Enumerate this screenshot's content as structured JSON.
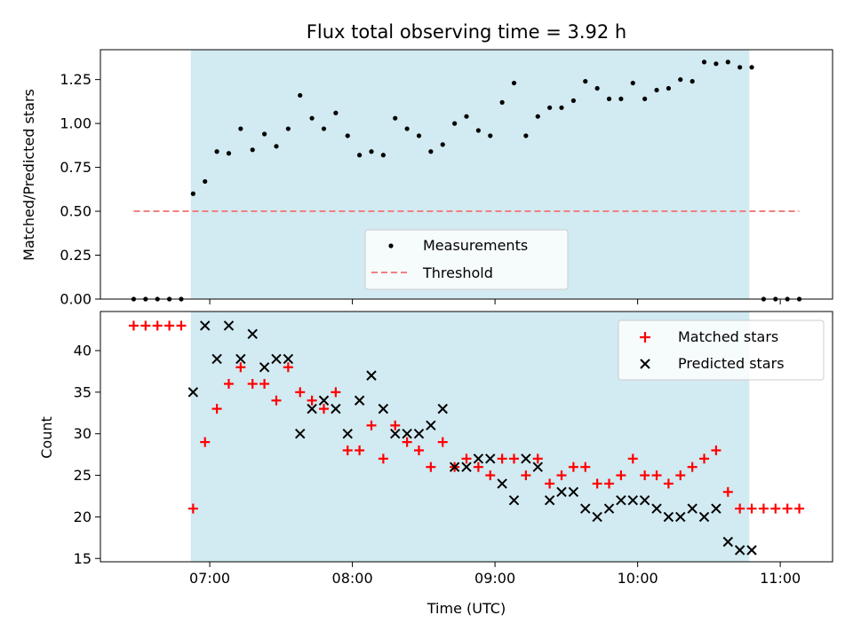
{
  "chart_data": [
    {
      "type": "scatter",
      "title": "Flux total observing time = 3.92 h",
      "xlabel": "",
      "ylabel": "Matched/Predicted stars",
      "xlim": [
        "06:14",
        "11:22"
      ],
      "ylim": [
        0,
        1.42
      ],
      "yticks": [
        0.0,
        0.25,
        0.5,
        0.75,
        1.0,
        1.25
      ],
      "ytick_labels": [
        "0.00",
        "0.25",
        "0.50",
        "0.75",
        "1.00",
        "1.25"
      ],
      "shaded_region": {
        "from": "06:52",
        "to": "10:47",
        "color": "#add8e6"
      },
      "legend_position": "lower center",
      "series": [
        {
          "name": "Measurements",
          "marker": "dot",
          "color": "#000000",
          "points": [
            [
              "06:28",
              0.0
            ],
            [
              "06:33",
              0.0
            ],
            [
              "06:38",
              0.0
            ],
            [
              "06:43",
              0.0
            ],
            [
              "06:48",
              0.0
            ],
            [
              "06:53",
              0.6
            ],
            [
              "06:58",
              0.67
            ],
            [
              "07:03",
              0.84
            ],
            [
              "07:08",
              0.83
            ],
            [
              "07:13",
              0.97
            ],
            [
              "07:18",
              0.85
            ],
            [
              "07:23",
              0.94
            ],
            [
              "07:28",
              0.87
            ],
            [
              "07:33",
              0.97
            ],
            [
              "07:38",
              1.16
            ],
            [
              "07:43",
              1.03
            ],
            [
              "07:48",
              0.97
            ],
            [
              "07:53",
              1.06
            ],
            [
              "07:58",
              0.93
            ],
            [
              "08:03",
              0.82
            ],
            [
              "08:08",
              0.84
            ],
            [
              "08:13",
              0.82
            ],
            [
              "08:18",
              1.03
            ],
            [
              "08:23",
              0.97
            ],
            [
              "08:28",
              0.93
            ],
            [
              "08:33",
              0.84
            ],
            [
              "08:38",
              0.88
            ],
            [
              "08:43",
              1.0
            ],
            [
              "08:48",
              1.04
            ],
            [
              "08:53",
              0.96
            ],
            [
              "08:58",
              0.93
            ],
            [
              "09:03",
              1.12
            ],
            [
              "09:08",
              1.23
            ],
            [
              "09:13",
              0.93
            ],
            [
              "09:18",
              1.04
            ],
            [
              "09:23",
              1.09
            ],
            [
              "09:28",
              1.09
            ],
            [
              "09:33",
              1.13
            ],
            [
              "09:38",
              1.24
            ],
            [
              "09:43",
              1.2
            ],
            [
              "09:48",
              1.14
            ],
            [
              "09:53",
              1.14
            ],
            [
              "09:58",
              1.23
            ],
            [
              "10:03",
              1.14
            ],
            [
              "10:08",
              1.19
            ],
            [
              "10:13",
              1.2
            ],
            [
              "10:18",
              1.25
            ],
            [
              "10:23",
              1.24
            ],
            [
              "10:28",
              1.35
            ],
            [
              "10:33",
              1.34
            ],
            [
              "10:38",
              1.35
            ],
            [
              "10:43",
              1.32
            ],
            [
              "10:48",
              1.32
            ],
            [
              "10:53",
              0.0
            ],
            [
              "10:58",
              0.0
            ],
            [
              "11:03",
              0.0
            ],
            [
              "11:08",
              0.0
            ]
          ]
        },
        {
          "name": "Threshold",
          "marker": "dashed-line",
          "color": "#f08080",
          "points": [
            [
              "06:28",
              0.5
            ],
            [
              "11:08",
              0.5
            ]
          ]
        }
      ]
    },
    {
      "type": "scatter",
      "title": "",
      "xlabel": "Time (UTC)",
      "ylabel": "Count",
      "xlim": [
        "06:14",
        "11:22"
      ],
      "ylim": [
        14.6,
        44.7
      ],
      "yticks": [
        15,
        20,
        25,
        30,
        35,
        40
      ],
      "ytick_labels": [
        "15",
        "20",
        "25",
        "30",
        "35",
        "40"
      ],
      "xticks": [
        "07:00",
        "08:00",
        "09:00",
        "10:00",
        "11:00"
      ],
      "xtick_labels": [
        "07:00",
        "08:00",
        "09:00",
        "10:00",
        "11:00"
      ],
      "shaded_region": {
        "from": "06:52",
        "to": "10:47",
        "color": "#add8e6"
      },
      "legend_position": "upper right",
      "series": [
        {
          "name": "Matched stars",
          "marker": "plus",
          "color": "#ff0000",
          "points": [
            [
              "06:28",
              43
            ],
            [
              "06:33",
              43
            ],
            [
              "06:38",
              43
            ],
            [
              "06:43",
              43
            ],
            [
              "06:48",
              43
            ],
            [
              "06:53",
              21
            ],
            [
              "06:58",
              29
            ],
            [
              "07:03",
              33
            ],
            [
              "07:08",
              36
            ],
            [
              "07:13",
              38
            ],
            [
              "07:18",
              36
            ],
            [
              "07:23",
              36
            ],
            [
              "07:28",
              34
            ],
            [
              "07:33",
              38
            ],
            [
              "07:38",
              35
            ],
            [
              "07:43",
              34
            ],
            [
              "07:48",
              33
            ],
            [
              "07:53",
              35
            ],
            [
              "07:58",
              28
            ],
            [
              "08:03",
              28
            ],
            [
              "08:08",
              31
            ],
            [
              "08:13",
              27
            ],
            [
              "08:18",
              31
            ],
            [
              "08:23",
              29
            ],
            [
              "08:28",
              28
            ],
            [
              "08:33",
              26
            ],
            [
              "08:38",
              29
            ],
            [
              "08:43",
              26
            ],
            [
              "08:48",
              27
            ],
            [
              "08:53",
              26
            ],
            [
              "08:58",
              25
            ],
            [
              "09:03",
              27
            ],
            [
              "09:08",
              27
            ],
            [
              "09:13",
              25
            ],
            [
              "09:18",
              27
            ],
            [
              "09:23",
              24
            ],
            [
              "09:28",
              25
            ],
            [
              "09:33",
              26
            ],
            [
              "09:38",
              26
            ],
            [
              "09:43",
              24
            ],
            [
              "09:48",
              24
            ],
            [
              "09:53",
              25
            ],
            [
              "09:58",
              27
            ],
            [
              "10:03",
              25
            ],
            [
              "10:08",
              25
            ],
            [
              "10:13",
              24
            ],
            [
              "10:18",
              25
            ],
            [
              "10:23",
              26
            ],
            [
              "10:28",
              27
            ],
            [
              "10:33",
              28
            ],
            [
              "10:38",
              23
            ],
            [
              "10:43",
              21
            ],
            [
              "10:48",
              21
            ],
            [
              "10:53",
              21
            ],
            [
              "10:58",
              21
            ],
            [
              "11:03",
              21
            ],
            [
              "11:08",
              21
            ]
          ]
        },
        {
          "name": "Predicted stars",
          "marker": "x",
          "color": "#000000",
          "points": [
            [
              "06:53",
              35
            ],
            [
              "06:58",
              43
            ],
            [
              "07:03",
              39
            ],
            [
              "07:08",
              43
            ],
            [
              "07:13",
              39
            ],
            [
              "07:18",
              42
            ],
            [
              "07:23",
              38
            ],
            [
              "07:28",
              39
            ],
            [
              "07:33",
              39
            ],
            [
              "07:38",
              30
            ],
            [
              "07:43",
              33
            ],
            [
              "07:48",
              34
            ],
            [
              "07:53",
              33
            ],
            [
              "07:58",
              30
            ],
            [
              "08:03",
              34
            ],
            [
              "08:08",
              37
            ],
            [
              "08:13",
              33
            ],
            [
              "08:18",
              30
            ],
            [
              "08:23",
              30
            ],
            [
              "08:28",
              30
            ],
            [
              "08:33",
              31
            ],
            [
              "08:38",
              33
            ],
            [
              "08:43",
              26
            ],
            [
              "08:48",
              26
            ],
            [
              "08:53",
              27
            ],
            [
              "08:58",
              27
            ],
            [
              "09:03",
              24
            ],
            [
              "09:08",
              22
            ],
            [
              "09:13",
              27
            ],
            [
              "09:18",
              26
            ],
            [
              "09:23",
              22
            ],
            [
              "09:28",
              23
            ],
            [
              "09:33",
              23
            ],
            [
              "09:38",
              21
            ],
            [
              "09:43",
              20
            ],
            [
              "09:48",
              21
            ],
            [
              "09:53",
              22
            ],
            [
              "09:58",
              22
            ],
            [
              "10:03",
              22
            ],
            [
              "10:08",
              21
            ],
            [
              "10:13",
              20
            ],
            [
              "10:18",
              20
            ],
            [
              "10:23",
              21
            ],
            [
              "10:28",
              20
            ],
            [
              "10:33",
              21
            ],
            [
              "10:38",
              17
            ],
            [
              "10:43",
              16
            ],
            [
              "10:48",
              16
            ]
          ]
        }
      ]
    }
  ]
}
